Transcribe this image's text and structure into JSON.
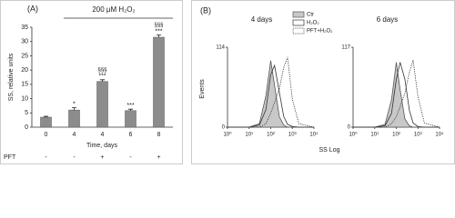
{
  "chart_data": [
    {
      "type": "bar",
      "panel_label": "(A)",
      "treatment": "200 μM H₂O₂",
      "ylabel": "SS, relative units",
      "xlabel": "Time, days",
      "categories": [
        "0",
        "4",
        "4",
        "6",
        "8"
      ],
      "values": [
        3.5,
        6,
        16,
        5.8,
        31.5
      ],
      "errors": [
        0.3,
        0.8,
        0.6,
        0.5,
        0.8
      ],
      "significance": [
        null,
        "*",
        "***",
        "***",
        "***"
      ],
      "significance_pft": [
        null,
        null,
        "§§§",
        null,
        "§§§"
      ],
      "row_label": "PFT",
      "row": [
        "-",
        "-",
        "+",
        "-",
        "+"
      ],
      "color": "#8c8c8c",
      "ylim": [
        0,
        35
      ],
      "yticks": [
        0,
        5,
        10,
        15,
        20,
        25,
        30,
        35
      ]
    },
    {
      "type": "line",
      "panel_label": "(B)",
      "xlabel": "SS Log",
      "ylabel": "Events",
      "log_x": true,
      "xlim": [
        1,
        10000
      ],
      "xticks": [
        {
          "value": 1,
          "label": "10⁰"
        },
        {
          "value": 10,
          "label": "10¹"
        },
        {
          "value": 100,
          "label": "10²"
        },
        {
          "value": 1000,
          "label": "10³"
        },
        {
          "value": 10000,
          "label": "10⁴"
        }
      ],
      "x": [
        1,
        10,
        30,
        60,
        100,
        150,
        250,
        400,
        600,
        1000,
        2000,
        10000
      ],
      "series": [
        {
          "name": "Ctr",
          "color": "#c8c8c8",
          "fill": true,
          "dash": "solid"
        },
        {
          "name": "H₂O₂",
          "color": "#333333",
          "fill": false,
          "dash": "solid"
        },
        {
          "name": "PFT+H₂O₂",
          "color": "#333333",
          "fill": false,
          "dash": "dotted"
        }
      ],
      "panels": [
        {
          "title": "4 days",
          "ylim": [
            0,
            114
          ],
          "yticks": [
            0,
            114
          ],
          "values": [
            [
              0,
              0,
              5,
              45,
              95,
              60,
              15,
              3,
              0,
              0,
              0,
              0
            ],
            [
              0,
              0,
              3,
              25,
              75,
              88,
              50,
              15,
              4,
              1,
              0,
              0
            ],
            [
              0,
              0,
              0,
              5,
              20,
              35,
              55,
              85,
              100,
              40,
              5,
              0
            ]
          ]
        },
        {
          "title": "6 days",
          "ylim": [
            0,
            117
          ],
          "yticks": [
            0,
            117
          ],
          "values": [
            [
              0,
              0,
              4,
              40,
              95,
              55,
              12,
              2,
              0,
              0,
              0,
              0
            ],
            [
              0,
              0,
              2,
              20,
              70,
              95,
              70,
              25,
              6,
              1,
              0,
              0
            ],
            [
              0,
              0,
              0,
              5,
              15,
              30,
              50,
              80,
              98,
              45,
              6,
              0
            ]
          ]
        }
      ]
    }
  ]
}
